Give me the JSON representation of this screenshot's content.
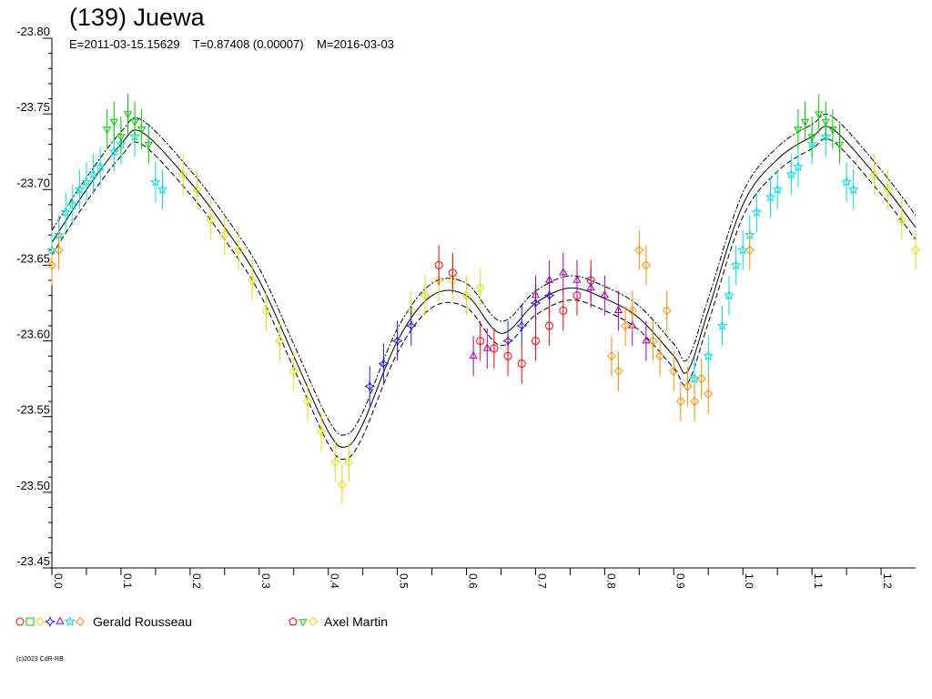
{
  "title": "(139) Juewa",
  "subtitle": "E=2011-03-15.15629    T=0.87408 (0.00007)    M=2016-03-03",
  "copyright": "(c)2023 CdR-RB",
  "legend": [
    {
      "label": "Gerald Rousseau",
      "symbols": [
        "circle",
        "square",
        "diamond",
        "star4",
        "triangle",
        "star5",
        "diamond"
      ],
      "colors": [
        "#ff0000",
        "#00cc00",
        "#e0e000",
        "#2020ff",
        "#aa00aa",
        "#00e0e0",
        "#ff8c00"
      ]
    },
    {
      "label": "Axel Martin",
      "symbols": [
        "pentagon",
        "triangle-down",
        "diamond"
      ],
      "colors": [
        "#ff0000",
        "#00cc00",
        "#e0e000"
      ]
    }
  ],
  "chart_data": {
    "type": "scatter",
    "title": "(139) Juewa",
    "xlim": [
      0.0,
      1.25
    ],
    "ylim": [
      -23.45,
      -23.8
    ],
    "x_ticks": [
      "0.0",
      "0.1",
      "0.2",
      "0.3",
      "0.4",
      "0.5",
      "0.6",
      "0.7",
      "0.8",
      "0.9",
      "1.0",
      "1.1",
      "1.2"
    ],
    "y_ticks": [
      "-23.80",
      "-23.75",
      "-23.70",
      "-23.65",
      "-23.60",
      "-23.55",
      "-23.50",
      "-23.45"
    ],
    "fit_curve": {
      "x": [
        0.0,
        0.05,
        0.1,
        0.13,
        0.2,
        0.25,
        0.3,
        0.35,
        0.4,
        0.425,
        0.45,
        0.5,
        0.55,
        0.6,
        0.65,
        0.7,
        0.75,
        0.8,
        0.85,
        0.9,
        0.92,
        0.95,
        1.0,
        1.05,
        1.1,
        1.13,
        1.2,
        1.25
      ],
      "y": [
        -23.665,
        -23.7,
        -23.73,
        -23.738,
        -23.705,
        -23.675,
        -23.64,
        -23.59,
        -23.54,
        -23.53,
        -23.545,
        -23.6,
        -23.63,
        -23.63,
        -23.605,
        -23.625,
        -23.635,
        -23.628,
        -23.615,
        -23.59,
        -23.58,
        -23.62,
        -23.69,
        -23.72,
        -23.735,
        -23.74,
        -23.705,
        -23.675
      ]
    },
    "series": [
      {
        "color": "#00e0e0",
        "symbol": "star5",
        "x": [
          0.0,
          0.01,
          0.02,
          0.03,
          0.04,
          0.05,
          0.06,
          0.07,
          0.09,
          0.1,
          0.12,
          0.15,
          0.16,
          0.93,
          0.95,
          0.97,
          0.98,
          0.99,
          1.0,
          1.01,
          1.02,
          1.04,
          1.05,
          1.07,
          1.08,
          1.1,
          1.12,
          1.15,
          1.16
        ],
        "y": [
          -23.66,
          -23.67,
          -23.685,
          -23.69,
          -23.7,
          -23.705,
          -23.71,
          -23.715,
          -23.725,
          -23.73,
          -23.735,
          -23.705,
          -23.7,
          -23.575,
          -23.59,
          -23.61,
          -23.63,
          -23.65,
          -23.66,
          -23.67,
          -23.685,
          -23.695,
          -23.7,
          -23.71,
          -23.715,
          -23.73,
          -23.735,
          -23.705,
          -23.7
        ]
      },
      {
        "color": "#00cc00",
        "symbol": "triangle-down",
        "x": [
          0.08,
          0.09,
          0.1,
          0.11,
          0.12,
          0.13,
          0.14,
          1.08,
          1.09,
          1.1,
          1.11,
          1.12,
          1.13,
          1.14
        ],
        "y": [
          -23.74,
          -23.745,
          -23.735,
          -23.75,
          -23.745,
          -23.74,
          -23.73,
          -23.74,
          -23.745,
          -23.735,
          -23.75,
          -23.745,
          -23.74,
          -23.73
        ]
      },
      {
        "color": "#e0e000",
        "symbol": "diamond",
        "x": [
          0.19,
          0.21,
          0.23,
          0.25,
          0.27,
          0.29,
          0.31,
          0.33,
          0.35,
          0.37,
          0.39,
          0.41,
          0.42,
          0.43,
          0.5,
          0.52,
          0.54,
          0.56,
          0.58,
          0.6,
          0.62,
          1.19,
          1.21,
          1.23,
          1.25
        ],
        "y": [
          -23.71,
          -23.7,
          -23.68,
          -23.67,
          -23.66,
          -23.64,
          -23.62,
          -23.6,
          -23.58,
          -23.56,
          -23.54,
          -23.52,
          -23.505,
          -23.52,
          -23.6,
          -23.62,
          -23.63,
          -23.64,
          -23.64,
          -23.63,
          -23.635,
          -23.71,
          -23.7,
          -23.68,
          -23.66
        ]
      },
      {
        "color": "#2020ff",
        "symbol": "star4",
        "x": [
          0.46,
          0.48,
          0.5,
          0.52,
          0.66,
          0.68,
          0.7,
          0.72
        ],
        "y": [
          -23.57,
          -23.585,
          -23.6,
          -23.61,
          -23.6,
          -23.61,
          -23.625,
          -23.63
        ]
      },
      {
        "color": "#ff0000",
        "symbol": "circle",
        "x": [
          0.56,
          0.58,
          0.62,
          0.64,
          0.66,
          0.68,
          0.7,
          0.72,
          0.74,
          0.76,
          0.78
        ],
        "y": [
          -23.65,
          -23.645,
          -23.6,
          -23.595,
          -23.59,
          -23.585,
          -23.6,
          -23.61,
          -23.62,
          -23.63,
          -23.64
        ]
      },
      {
        "color": "#aa00aa",
        "symbol": "triangle",
        "x": [
          0.61,
          0.63,
          0.7,
          0.72,
          0.74,
          0.76,
          0.78,
          0.8,
          0.82,
          0.84,
          0.86
        ],
        "y": [
          -23.59,
          -23.595,
          -23.63,
          -23.64,
          -23.645,
          -23.64,
          -23.635,
          -23.63,
          -23.62,
          -23.61,
          -23.6
        ]
      },
      {
        "color": "#ff8c00",
        "symbol": "diamond",
        "x": [
          0.0,
          0.01,
          0.81,
          0.82,
          0.83,
          0.84,
          0.85,
          0.86,
          0.87,
          0.88,
          0.89,
          0.9,
          0.91,
          0.92,
          0.93,
          0.94,
          0.95,
          1.01
        ],
        "y": [
          -23.65,
          -23.66,
          -23.59,
          -23.58,
          -23.61,
          -23.62,
          -23.66,
          -23.65,
          -23.6,
          -23.59,
          -23.62,
          -23.58,
          -23.56,
          -23.57,
          -23.56,
          -23.575,
          -23.565,
          -23.66
        ]
      }
    ]
  }
}
